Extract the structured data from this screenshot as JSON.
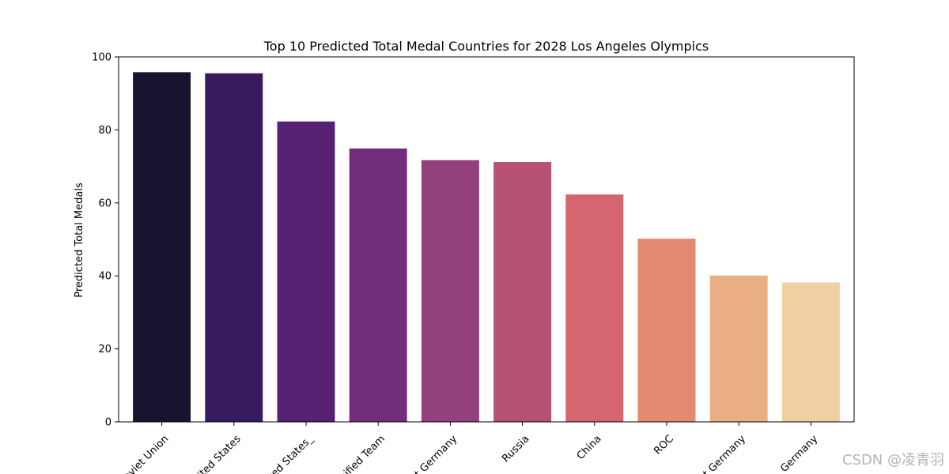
{
  "chart_data": {
    "type": "bar",
    "title": "Top 10 Predicted Total Medal Countries for 2028 Los Angeles Olympics",
    "xlabel": "",
    "ylabel": "Predicted Total Medals",
    "ylim": [
      0,
      100
    ],
    "yticks": [
      0,
      20,
      40,
      60,
      80,
      100
    ],
    "grid": false,
    "categories": [
      "Soviet Union",
      "United States",
      "United States_",
      "Unified Team",
      "East Germany",
      "Russia",
      "China",
      "ROC",
      "West Germany",
      "Germany"
    ],
    "tick_labels_visible": [
      "oviet Union",
      "ited States",
      "ted States_",
      "nified Team",
      "t Germany",
      "Russia",
      "China",
      "ROC",
      "t Germany",
      "Germany"
    ],
    "values": [
      95.8,
      95.5,
      82.3,
      74.9,
      71.7,
      71.2,
      62.3,
      50.2,
      40.1,
      38.2
    ],
    "colors": [
      "#16132e",
      "#361c5e",
      "#562173",
      "#722d7a",
      "#93407c",
      "#b75176",
      "#d5666f",
      "#e38a71",
      "#eaae85",
      "#f0d0a2"
    ]
  },
  "watermark": "CSDN @凌青羽"
}
